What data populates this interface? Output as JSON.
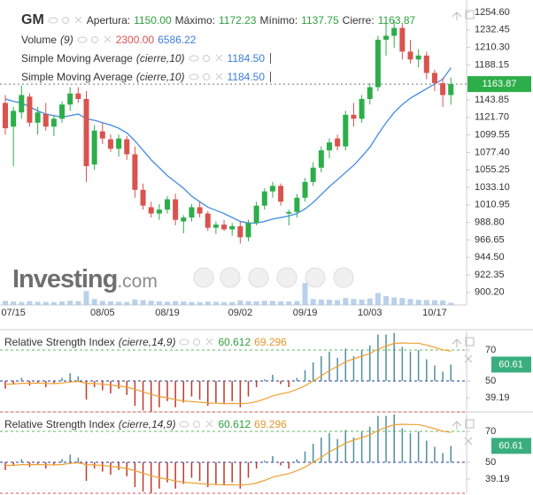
{
  "chart_data": [
    {
      "type": "candlestick",
      "title": "GM",
      "ohlc_labels": [
        {
          "name": "Apertura:",
          "value": "1150.00"
        },
        {
          "name": "Máximo:",
          "value": "1172.23"
        },
        {
          "name": "Mínimo:",
          "value": "1137.75"
        },
        {
          "name": "Cierre:",
          "value": "1163.87"
        }
      ],
      "categories": [
        null,
        "07/15",
        null,
        null,
        null,
        null,
        null,
        null,
        null,
        null,
        null,
        null,
        "08/05",
        null,
        null,
        null,
        null,
        null,
        null,
        null,
        "08/19",
        null,
        null,
        null,
        null,
        null,
        null,
        null,
        null,
        "09/02",
        null,
        null,
        null,
        null,
        null,
        null,
        null,
        "09/19",
        null,
        null,
        null,
        null,
        null,
        null,
        null,
        "10/03",
        null,
        null,
        null,
        null,
        null,
        null,
        null,
        "10/17",
        null,
        null
      ],
      "open": [
        1140,
        1110,
        1128,
        1148,
        1115,
        1126,
        1110,
        1120,
        1138,
        1152,
        1145,
        1062,
        1104,
        1094,
        1082,
        1094,
        1075,
        1030,
        1008,
        1000,
        1005,
        1018,
        990,
        995,
        1008,
        1000,
        982,
        986,
        980,
        984,
        970,
        988,
        1010,
        1028,
        1035,
        1000,
        1002,
        1020,
        1040,
        1058,
        1080,
        1095,
        1085,
        1125,
        1120,
        1145,
        1160,
        1220,
        1225,
        1235,
        1205,
        1195,
        1200,
        1178,
        1165,
        1150
      ],
      "high": [
        1150,
        1135,
        1162,
        1152,
        1135,
        1140,
        1125,
        1142,
        1160,
        1160,
        1155,
        1112,
        1115,
        1100,
        1100,
        1098,
        1085,
        1038,
        1015,
        1012,
        1022,
        1025,
        998,
        1012,
        1015,
        1003,
        990,
        992,
        988,
        990,
        992,
        1015,
        1032,
        1040,
        1038,
        1005,
        1025,
        1045,
        1065,
        1085,
        1095,
        1100,
        1130,
        1140,
        1150,
        1165,
        1225,
        1245,
        1245,
        1240,
        1220,
        1208,
        1205,
        1182,
        1172,
        1172.23
      ],
      "low": [
        1100,
        1060,
        1120,
        1110,
        1100,
        1105,
        1098,
        1115,
        1130,
        1140,
        1040,
        1055,
        1088,
        1078,
        1072,
        1068,
        1020,
        1005,
        995,
        992,
        1000,
        985,
        975,
        990,
        995,
        978,
        974,
        978,
        972,
        962,
        965,
        985,
        1005,
        1020,
        1010,
        985,
        995,
        1015,
        1035,
        1052,
        1070,
        1080,
        1080,
        1110,
        1115,
        1138,
        1155,
        1200,
        1210,
        1195,
        1190,
        1185,
        1170,
        1155,
        1135,
        1137.75
      ],
      "close": [
        1108,
        1130,
        1150,
        1115,
        1128,
        1110,
        1120,
        1138,
        1152,
        1145,
        1060,
        1105,
        1095,
        1082,
        1095,
        1075,
        1030,
        1010,
        1000,
        1005,
        1018,
        992,
        995,
        1008,
        1000,
        982,
        986,
        980,
        984,
        970,
        988,
        1010,
        1028,
        1035,
        1015,
        1002,
        1020,
        1040,
        1058,
        1080,
        1090,
        1085,
        1125,
        1120,
        1145,
        1160,
        1220,
        1225,
        1235,
        1205,
        1195,
        1200,
        1178,
        1165,
        1150,
        1163.87
      ],
      "up_color": "#2dae4a",
      "down_color": "#d9534f",
      "ylim": [
        884.3,
        1270.3
      ],
      "yticks": [
        {
          "value": 1254.6,
          "label": "1254.60"
        },
        {
          "value": 1232.45,
          "label": "1232.45"
        },
        {
          "value": 1210.3,
          "label": "1210.30"
        },
        {
          "value": 1188.15,
          "label": "1188.15"
        },
        {
          "value": 1143.85,
          "label": "1143.85"
        },
        {
          "value": 1121.7,
          "label": "1121.70"
        },
        {
          "value": 1099.55,
          "label": "1099.55"
        },
        {
          "value": 1077.4,
          "label": "1077.40"
        },
        {
          "value": 1055.25,
          "label": "1055.25"
        },
        {
          "value": 1033.1,
          "label": "1033.10"
        },
        {
          "value": 1010.95,
          "label": "1010.95"
        },
        {
          "value": 988.8,
          "label": "988.80"
        },
        {
          "value": 966.65,
          "label": "966.65"
        },
        {
          "value": 944.5,
          "label": "944.50"
        },
        {
          "value": 922.35,
          "label": "922.35"
        },
        {
          "value": 900.2,
          "label": "900.20"
        }
      ],
      "last_price": {
        "value": 1163.87,
        "label": "1163.87"
      },
      "series": [
        {
          "name": "Simple Moving Average",
          "params": "(cierre,10)",
          "value_label": "1184.50",
          "color": "#4a90e2",
          "values": [
            1145,
            1142,
            1140,
            1135,
            1130,
            1126,
            1124,
            1122,
            1124,
            1126,
            1120,
            1118,
            1115,
            1112,
            1108,
            1102,
            1092,
            1080,
            1068,
            1058,
            1048,
            1040,
            1032,
            1022,
            1015,
            1008,
            1004,
            1000,
            995,
            990,
            988,
            988,
            990,
            993,
            995,
            997,
            1000,
            1006,
            1014,
            1024,
            1034,
            1043,
            1052,
            1061,
            1072,
            1084,
            1100,
            1115,
            1128,
            1138,
            1146,
            1152,
            1158,
            1164,
            1170,
            1184.5
          ]
        },
        {
          "name": "Simple Moving Average",
          "params": "(cierre,10)",
          "value_label": "1184.50",
          "color": "#4a90e2",
          "values": [
            1145,
            1142,
            1140,
            1135,
            1130,
            1126,
            1124,
            1122,
            1124,
            1126,
            1120,
            1118,
            1115,
            1112,
            1108,
            1102,
            1092,
            1080,
            1068,
            1058,
            1048,
            1040,
            1032,
            1022,
            1015,
            1008,
            1004,
            1000,
            995,
            990,
            988,
            988,
            990,
            993,
            995,
            997,
            1000,
            1006,
            1014,
            1024,
            1034,
            1043,
            1052,
            1061,
            1072,
            1084,
            1100,
            1115,
            1128,
            1138,
            1146,
            1152,
            1158,
            1164,
            1170,
            1184.5
          ]
        }
      ],
      "volume": {
        "name": "Volume",
        "params": "(9)",
        "legend_values": [
          "2300.00",
          "6586.22"
        ],
        "color": "#a8c6e6",
        "y2lim": [
          0,
          40000
        ],
        "values": [
          4000,
          3500,
          3000,
          3800,
          3200,
          3000,
          2800,
          3500,
          4200,
          3900,
          14000,
          6000,
          4000,
          3500,
          3200,
          3000,
          5500,
          4800,
          4200,
          3600,
          3300,
          3900,
          3500,
          3000,
          2900,
          3400,
          3100,
          2800,
          3000,
          4500,
          3800,
          3600,
          4200,
          4000,
          3700,
          3500,
          3900,
          22000,
          6000,
          5500,
          5200,
          4800,
          7000,
          6000,
          5500,
          6500,
          12000,
          9000,
          7500,
          7000,
          6000,
          5200,
          5000,
          4800,
          4500,
          2300
        ]
      },
      "watermark": [
        "Investing",
        ".com"
      ]
    },
    {
      "type": "rsi",
      "title": "Relative Strength Index",
      "params": "(cierre,14,9)",
      "legend_values": [
        "60.612",
        "69.296"
      ],
      "values": [
        45,
        48,
        52,
        47,
        49,
        46,
        48,
        52,
        55,
        53,
        38,
        46,
        44,
        42,
        45,
        41,
        34,
        31,
        30,
        33,
        37,
        33,
        36,
        40,
        38,
        34,
        36,
        35,
        37,
        33,
        40,
        46,
        51,
        54,
        48,
        46,
        52,
        57,
        62,
        66,
        69,
        65,
        71,
        66,
        70,
        73,
        80,
        80,
        81,
        72,
        69,
        70,
        64,
        60,
        56,
        60.612
      ],
      "signal": [
        48,
        48,
        48.5,
        48.5,
        48.6,
        48.4,
        48.3,
        48.6,
        49.3,
        49.7,
        48.5,
        48.3,
        48,
        47.3,
        46.8,
        46,
        44.6,
        43,
        41.3,
        40,
        39.1,
        37.9,
        37.1,
        36.7,
        36.3,
        35.8,
        35.6,
        35.4,
        35.5,
        35.3,
        35.6,
        36.6,
        38.3,
        40.4,
        41.6,
        42.7,
        44.6,
        47,
        50,
        53.3,
        56.8,
        59.4,
        62.4,
        64.3,
        66,
        67.7,
        70.6,
        72.6,
        74.3,
        74.6,
        74.4,
        74.4,
        73.2,
        71.7,
        70.1,
        69.296
      ],
      "up_color": "#4f8fa0",
      "down_color": "#c0392b",
      "signal_color": "#f0a030",
      "ylim": [
        30,
        82
      ],
      "yticks": [
        70,
        50,
        39.19
      ],
      "last": 60.61,
      "last_color": "#3aae7e",
      "levels": [
        {
          "value": 70,
          "color": "#5cb85c"
        },
        {
          "value": 50,
          "color": "#1f3a93"
        },
        {
          "value": 30,
          "color": "#d9534f"
        }
      ]
    },
    {
      "type": "rsi",
      "title": "Relative Strength Index",
      "params": "(cierre,14,9)",
      "legend_values": [
        "60.612",
        "69.296"
      ],
      "values": [
        45,
        48,
        52,
        47,
        49,
        46,
        48,
        52,
        55,
        53,
        38,
        46,
        44,
        42,
        45,
        41,
        34,
        31,
        30,
        33,
        37,
        33,
        36,
        40,
        38,
        34,
        36,
        35,
        37,
        33,
        40,
        46,
        51,
        54,
        48,
        46,
        52,
        57,
        62,
        66,
        69,
        65,
        71,
        66,
        70,
        73,
        80,
        80,
        81,
        72,
        69,
        70,
        64,
        60,
        56,
        60.612
      ],
      "signal": [
        48,
        48,
        48.5,
        48.5,
        48.6,
        48.4,
        48.3,
        48.6,
        49.3,
        49.7,
        48.5,
        48.3,
        48,
        47.3,
        46.8,
        46,
        44.6,
        43,
        41.3,
        40,
        39.1,
        37.9,
        37.1,
        36.7,
        36.3,
        35.8,
        35.6,
        35.4,
        35.5,
        35.3,
        35.6,
        36.6,
        38.3,
        40.4,
        41.6,
        42.7,
        44.6,
        47,
        50,
        53.3,
        56.8,
        59.4,
        62.4,
        64.3,
        66,
        67.7,
        70.6,
        72.6,
        74.3,
        74.6,
        74.4,
        74.4,
        73.2,
        71.7,
        70.1,
        69.296
      ],
      "up_color": "#4f8fa0",
      "down_color": "#c0392b",
      "signal_color": "#f0a030",
      "ylim": [
        30,
        82
      ],
      "yticks": [
        70,
        50,
        39.19
      ],
      "last": 60.61,
      "last_color": "#3aae7e",
      "levels": [
        {
          "value": 70,
          "color": "#5cb85c"
        },
        {
          "value": 50,
          "color": "#1f3a93"
        },
        {
          "value": 30,
          "color": "#d9534f"
        }
      ]
    }
  ]
}
